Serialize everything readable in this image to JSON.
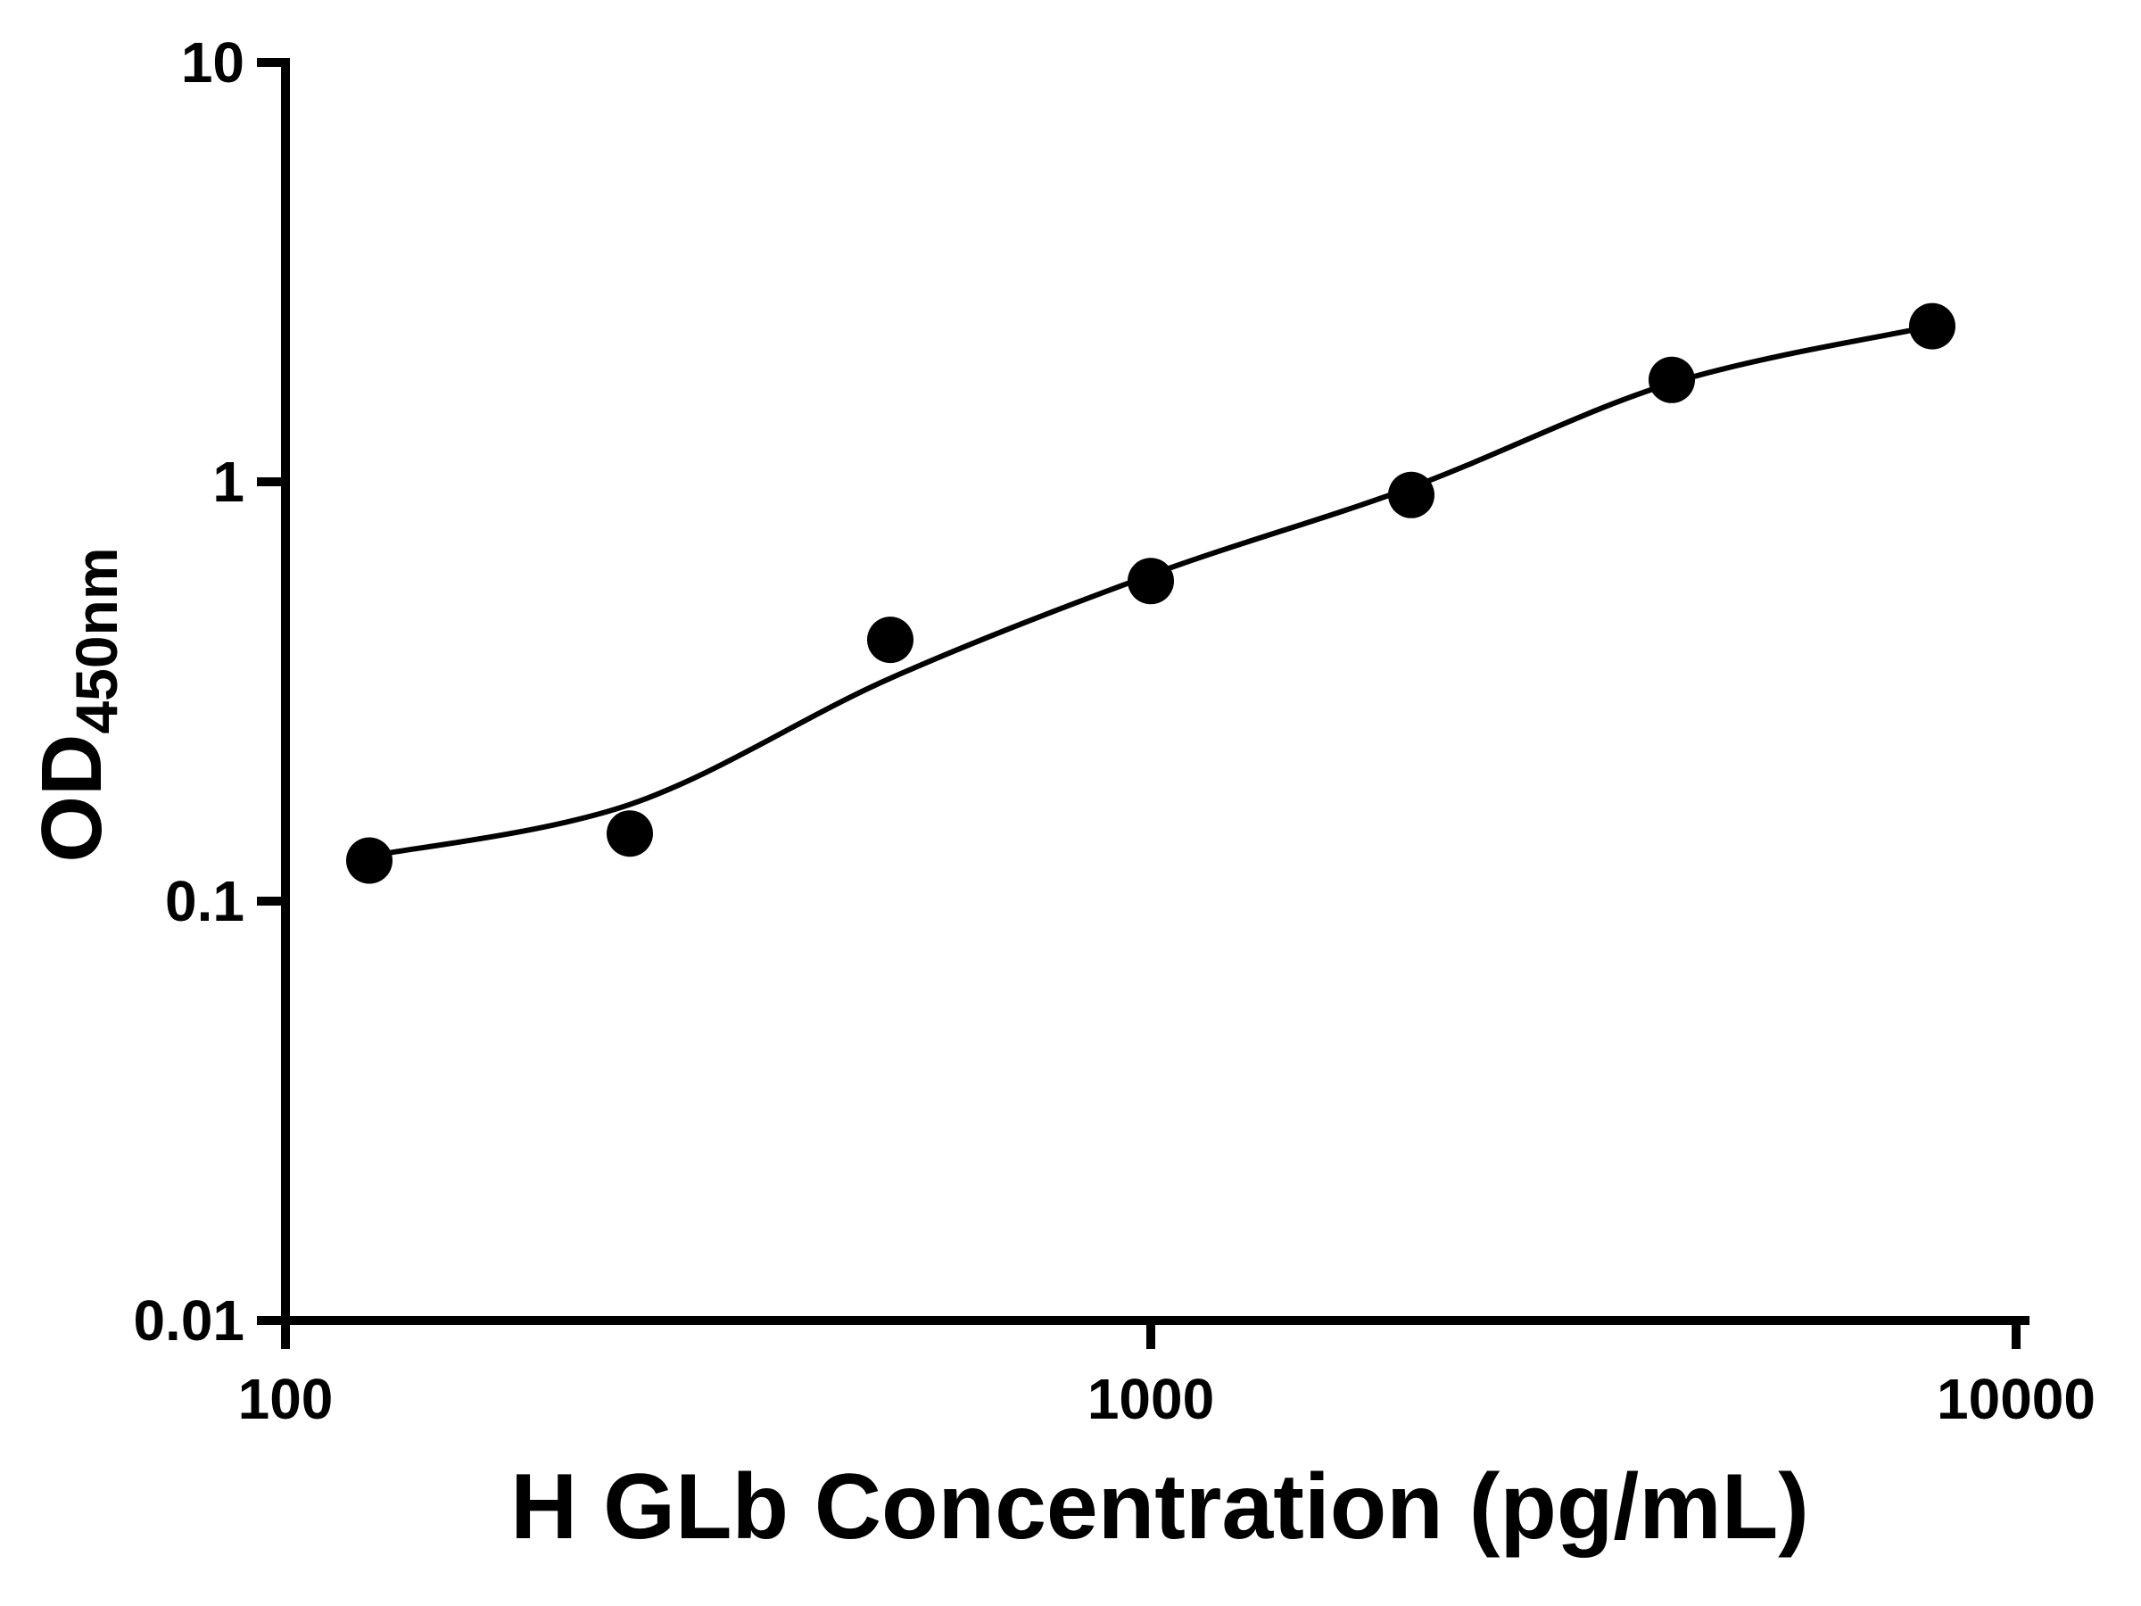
{
  "chart_data": {
    "type": "scatter",
    "title": "",
    "xlabel": "H GLb Concentration (pg/mL)",
    "ylabel_base": "OD",
    "ylabel_subscript": "450nm",
    "x_scale": "log10",
    "y_scale": "log10",
    "xlim": [
      100,
      10000
    ],
    "ylim": [
      0.01,
      10
    ],
    "grid": false,
    "legend": false,
    "axis_color": "#000000",
    "marker_color": "#000000",
    "curve_color": "#000000",
    "background_color": "#ffffff",
    "x_ticks": [
      {
        "value": 100,
        "label": "100"
      },
      {
        "value": 1000,
        "label": "1000"
      },
      {
        "value": 10000,
        "label": "10000"
      }
    ],
    "y_ticks": [
      {
        "value": 0.01,
        "label": "0.01"
      },
      {
        "value": 0.1,
        "label": "0.1"
      },
      {
        "value": 1,
        "label": "1"
      },
      {
        "value": 10,
        "label": "10"
      }
    ],
    "points": [
      {
        "x": 125,
        "y": 0.125
      },
      {
        "x": 250,
        "y": 0.145
      },
      {
        "x": 500,
        "y": 0.42
      },
      {
        "x": 1000,
        "y": 0.58
      },
      {
        "x": 2000,
        "y": 0.93
      },
      {
        "x": 4000,
        "y": 1.75
      },
      {
        "x": 8000,
        "y": 2.35
      }
    ],
    "fit_curve_points": [
      {
        "x": 125,
        "y": 0.128
      },
      {
        "x": 250,
        "y": 0.17
      },
      {
        "x": 500,
        "y": 0.34
      },
      {
        "x": 1000,
        "y": 0.6
      },
      {
        "x": 2000,
        "y": 0.97
      },
      {
        "x": 4000,
        "y": 1.72
      },
      {
        "x": 8000,
        "y": 2.35
      }
    ]
  }
}
